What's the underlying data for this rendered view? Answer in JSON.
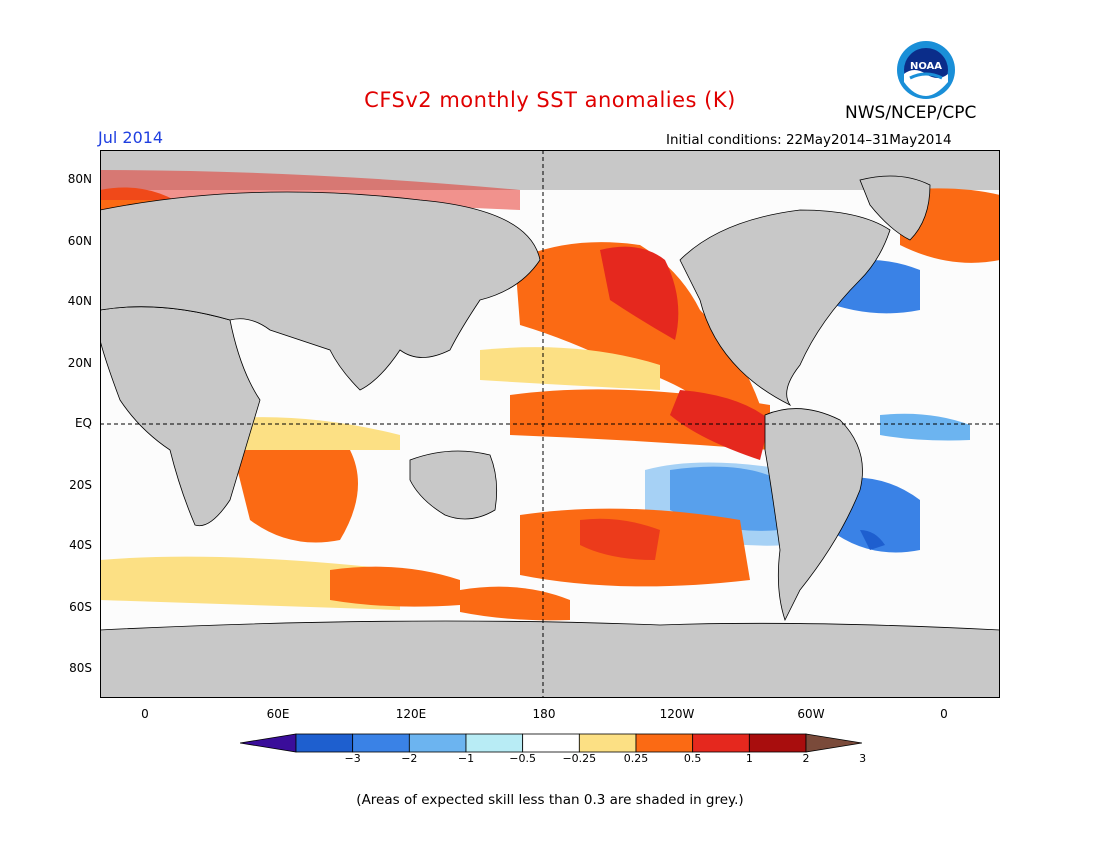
{
  "title": "CFSv2 monthly SST anomalies (K)",
  "agency": "NWS/NCEP/CPC",
  "logo_text": "NOAA",
  "month": "Jul 2014",
  "initial_conditions": "Initial conditions: 22May2014–31May2014",
  "lat_labels": [
    "80N",
    "60N",
    "40N",
    "20N",
    "EQ",
    "20S",
    "40S",
    "60S",
    "80S"
  ],
  "lon_labels": [
    "0",
    "60E",
    "120E",
    "180",
    "120W",
    "60W",
    "0"
  ],
  "colorbar": {
    "labels": [
      "−3",
      "−2",
      "−1",
      "−0.5",
      "−0.25",
      "0.25",
      "0.5",
      "1",
      "2",
      "3"
    ],
    "colors": [
      "#3a0d9a",
      "#1e5fcf",
      "#3a82e6",
      "#6cb4f0",
      "#b8ecf5",
      "#ffffff",
      "#fce084",
      "#fb6a14",
      "#e5281e",
      "#a80d0d",
      "#7a4a3a"
    ]
  },
  "land_color": "#c8c8c8",
  "skill_grey": "#bdbdbd",
  "note": "(Areas of expected skill less than 0.3 are shaded in grey.)"
}
